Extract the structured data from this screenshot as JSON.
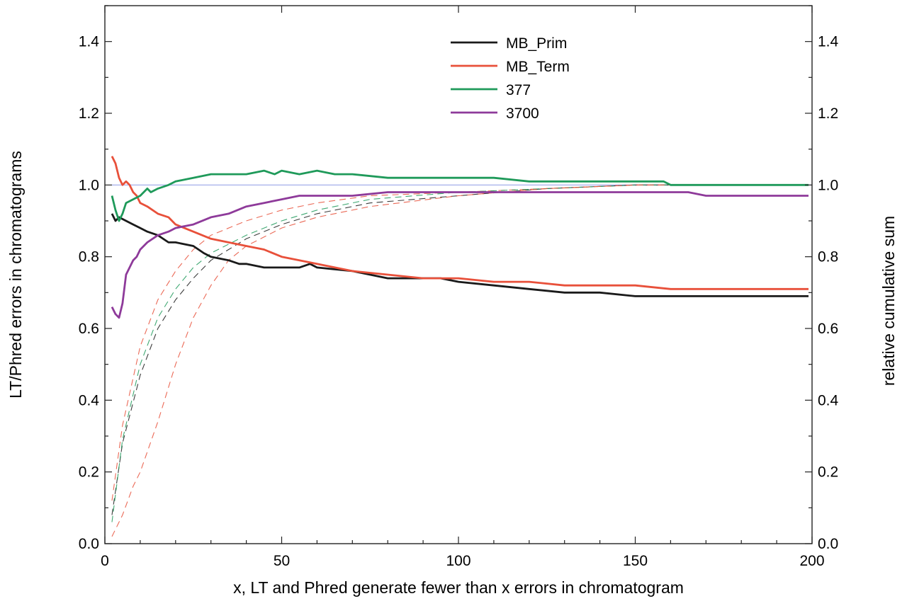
{
  "chart_data": {
    "type": "line",
    "title": "",
    "xlabel": "x, LT and Phred generate fewer than x errors in chromatogram",
    "ylabel": "LT/Phred errors in chromatograms",
    "y2label": "relative cumulative sum",
    "xlim": [
      0,
      200
    ],
    "ylim": [
      0,
      1.5
    ],
    "y2lim": [
      0,
      1.5
    ],
    "x_ticks": [
      "0",
      "50",
      "100",
      "150",
      "200"
    ],
    "x_tick_values": [
      0,
      50,
      100,
      150,
      200
    ],
    "y_ticks": [
      "0.0",
      "0.2",
      "0.4",
      "0.6",
      "0.8",
      "1.0",
      "1.2",
      "1.4"
    ],
    "y_tick_values": [
      0,
      0.2,
      0.4,
      0.6,
      0.8,
      1.0,
      1.2,
      1.4
    ],
    "grid": false,
    "legend_position": "top-center",
    "reference_line": {
      "y": 1.0,
      "color": "#9aa6e8"
    },
    "series": [
      {
        "name": "MB_Prim",
        "color": "#1a1a1a",
        "axis": "left",
        "x": [
          2,
          3,
          4,
          6,
          8,
          10,
          12,
          15,
          18,
          20,
          25,
          28,
          30,
          35,
          38,
          40,
          45,
          48,
          50,
          55,
          58,
          60,
          70,
          75,
          80,
          90,
          95,
          100,
          110,
          120,
          130,
          140,
          150,
          160,
          170,
          180,
          190,
          199
        ],
        "y": [
          0.92,
          0.9,
          0.91,
          0.9,
          0.89,
          0.88,
          0.87,
          0.86,
          0.84,
          0.84,
          0.83,
          0.81,
          0.8,
          0.79,
          0.78,
          0.78,
          0.77,
          0.77,
          0.77,
          0.77,
          0.78,
          0.77,
          0.76,
          0.75,
          0.74,
          0.74,
          0.74,
          0.73,
          0.72,
          0.71,
          0.7,
          0.7,
          0.69,
          0.69,
          0.69,
          0.69,
          0.69,
          0.69
        ]
      },
      {
        "name": "MB_Term",
        "color": "#e8503a",
        "axis": "left",
        "x": [
          2,
          3,
          4,
          5,
          6,
          7,
          8,
          9,
          10,
          12,
          15,
          18,
          20,
          25,
          30,
          35,
          40,
          45,
          50,
          55,
          60,
          70,
          80,
          90,
          100,
          110,
          120,
          130,
          140,
          150,
          160,
          170,
          180,
          190,
          199
        ],
        "y": [
          1.08,
          1.06,
          1.02,
          1.0,
          1.01,
          1.0,
          0.98,
          0.97,
          0.95,
          0.94,
          0.92,
          0.91,
          0.89,
          0.87,
          0.85,
          0.84,
          0.83,
          0.82,
          0.8,
          0.79,
          0.78,
          0.76,
          0.75,
          0.74,
          0.74,
          0.73,
          0.73,
          0.72,
          0.72,
          0.72,
          0.71,
          0.71,
          0.71,
          0.71,
          0.71
        ]
      },
      {
        "name": "377",
        "color": "#1f9a5a",
        "axis": "left",
        "x": [
          2,
          3,
          4,
          5,
          6,
          8,
          10,
          12,
          13,
          15,
          18,
          20,
          25,
          30,
          35,
          40,
          45,
          48,
          50,
          55,
          60,
          65,
          70,
          80,
          90,
          100,
          110,
          120,
          130,
          140,
          150,
          158,
          160,
          170,
          180,
          190,
          199
        ],
        "y": [
          0.97,
          0.93,
          0.9,
          0.92,
          0.95,
          0.96,
          0.97,
          0.99,
          0.98,
          0.99,
          1.0,
          1.01,
          1.02,
          1.03,
          1.03,
          1.03,
          1.04,
          1.03,
          1.04,
          1.03,
          1.04,
          1.03,
          1.03,
          1.02,
          1.02,
          1.02,
          1.02,
          1.01,
          1.01,
          1.01,
          1.01,
          1.01,
          1.0,
          1.0,
          1.0,
          1.0,
          1.0
        ]
      },
      {
        "name": "3700",
        "color": "#8e3a9a",
        "axis": "left",
        "x": [
          2,
          3,
          4,
          5,
          6,
          7,
          8,
          9,
          10,
          12,
          15,
          18,
          20,
          25,
          30,
          35,
          40,
          45,
          50,
          55,
          60,
          70,
          80,
          90,
          100,
          110,
          120,
          130,
          140,
          150,
          160,
          165,
          170,
          180,
          190,
          199
        ],
        "y": [
          0.66,
          0.64,
          0.63,
          0.67,
          0.75,
          0.77,
          0.79,
          0.8,
          0.82,
          0.84,
          0.86,
          0.87,
          0.88,
          0.89,
          0.91,
          0.92,
          0.94,
          0.95,
          0.96,
          0.97,
          0.97,
          0.97,
          0.98,
          0.98,
          0.98,
          0.98,
          0.98,
          0.98,
          0.98,
          0.98,
          0.98,
          0.98,
          0.97,
          0.97,
          0.97,
          0.97
        ]
      }
    ],
    "cumulative_series": [
      {
        "color": "#1a1a1a",
        "axis": "right",
        "dashed": true,
        "x": [
          2,
          5,
          10,
          15,
          20,
          25,
          30,
          40,
          50,
          60,
          75,
          100,
          125,
          150,
          175,
          199
        ],
        "y": [
          0.08,
          0.28,
          0.47,
          0.6,
          0.68,
          0.74,
          0.79,
          0.85,
          0.89,
          0.92,
          0.95,
          0.97,
          0.99,
          1.0,
          1.0,
          1.0
        ]
      },
      {
        "color": "#e8503a",
        "axis": "right",
        "dashed": true,
        "x": [
          2,
          5,
          10,
          15,
          20,
          25,
          30,
          40,
          50,
          60,
          75,
          100,
          125,
          150,
          175,
          199
        ],
        "y": [
          0.12,
          0.33,
          0.55,
          0.68,
          0.76,
          0.82,
          0.86,
          0.9,
          0.93,
          0.95,
          0.97,
          0.98,
          0.99,
          1.0,
          1.0,
          1.0
        ]
      },
      {
        "color": "#1f9a5a",
        "axis": "right",
        "dashed": true,
        "x": [
          2,
          5,
          10,
          15,
          20,
          25,
          30,
          40,
          50,
          60,
          75,
          100,
          125,
          150,
          175,
          199
        ],
        "y": [
          0.06,
          0.29,
          0.5,
          0.63,
          0.71,
          0.77,
          0.81,
          0.86,
          0.9,
          0.93,
          0.96,
          0.98,
          0.99,
          1.0,
          1.0,
          1.0
        ]
      },
      {
        "color": "#e8503a",
        "axis": "right",
        "dashed": true,
        "x": [
          2,
          5,
          8,
          10,
          15,
          20,
          25,
          30,
          35,
          40,
          50,
          60,
          75,
          100,
          125,
          150,
          175,
          199
        ],
        "y": [
          0.02,
          0.08,
          0.16,
          0.2,
          0.34,
          0.5,
          0.63,
          0.72,
          0.79,
          0.83,
          0.88,
          0.91,
          0.94,
          0.97,
          0.99,
          1.0,
          1.0,
          1.0
        ]
      }
    ]
  }
}
